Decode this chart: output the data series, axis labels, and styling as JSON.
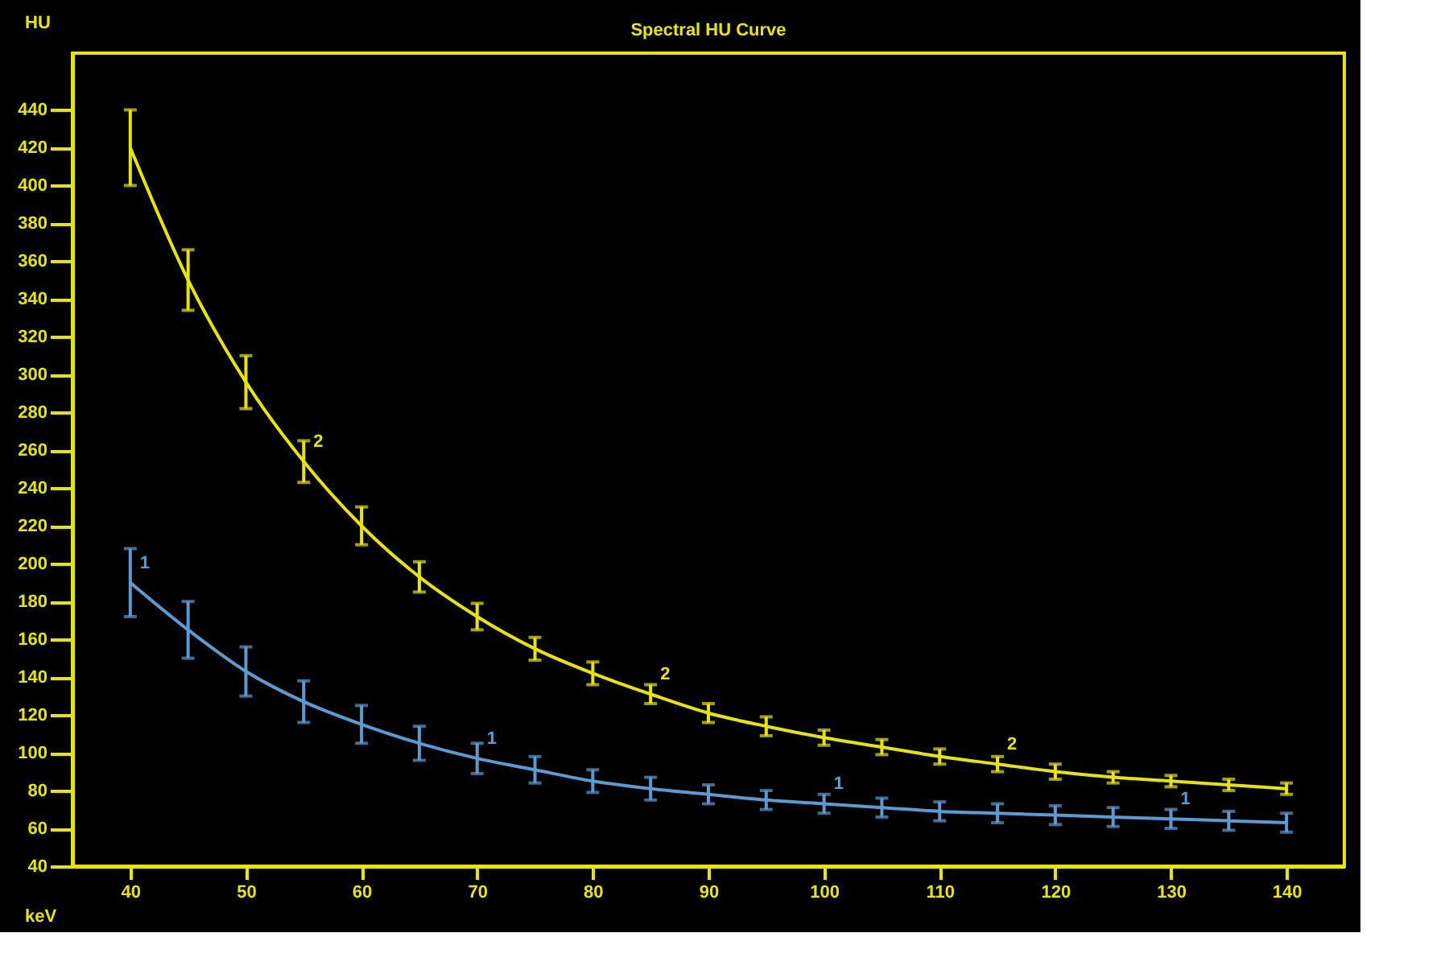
{
  "chart_data": {
    "type": "line",
    "title": "Spectral HU Curve",
    "xlabel": "keV",
    "ylabel": "HU",
    "x": [
      40,
      45,
      50,
      55,
      60,
      65,
      70,
      75,
      80,
      85,
      90,
      95,
      100,
      105,
      110,
      115,
      120,
      125,
      130,
      135,
      140
    ],
    "series": [
      {
        "color": "#e6e600",
        "values": [
          420,
          350,
          296,
          254,
          220,
          193,
          172,
          155,
          142,
          131,
          121,
          114,
          108,
          103,
          98,
          94,
          90,
          87,
          85,
          83,
          81
        ],
        "errors": [
          20,
          16,
          14,
          11,
          10,
          8,
          7,
          6,
          6,
          5,
          5,
          5,
          4,
          4,
          4,
          4,
          4,
          3,
          3,
          3,
          3
        ]
      },
      {
        "color": "#5b9bd5",
        "values": [
          190,
          165,
          143,
          127,
          115,
          105,
          97,
          91,
          85,
          81,
          78,
          75,
          73,
          71,
          69,
          68,
          67,
          66,
          65,
          64,
          63
        ],
        "errors": [
          18,
          15,
          13,
          11,
          10,
          9,
          8,
          7,
          6,
          6,
          5,
          5,
          5,
          5,
          5,
          5,
          5,
          5,
          5,
          5,
          5
        ]
      }
    ],
    "annotations": [
      {
        "text": "1",
        "x": 40,
        "y": 190
      },
      {
        "text": "1",
        "x": 70,
        "y": 97
      },
      {
        "text": "1",
        "x": 100,
        "y": 73
      },
      {
        "text": "1",
        "x": 130,
        "y": 65
      },
      {
        "text": "2",
        "x": 55,
        "y": 254
      },
      {
        "text": "2",
        "x": 85,
        "y": 131
      },
      {
        "text": "2",
        "x": 115,
        "y": 94
      }
    ],
    "xlim": [
      35,
      145
    ],
    "ylim": [
      40,
      470
    ],
    "xticks": [
      40,
      50,
      60,
      70,
      80,
      90,
      100,
      110,
      120,
      130,
      140
    ],
    "yticks": [
      40,
      60,
      80,
      100,
      120,
      140,
      160,
      180,
      200,
      220,
      240,
      260,
      280,
      300,
      320,
      340,
      360,
      380,
      400,
      420,
      440
    ],
    "grid": false,
    "marker": "none",
    "line_style": "solid"
  }
}
